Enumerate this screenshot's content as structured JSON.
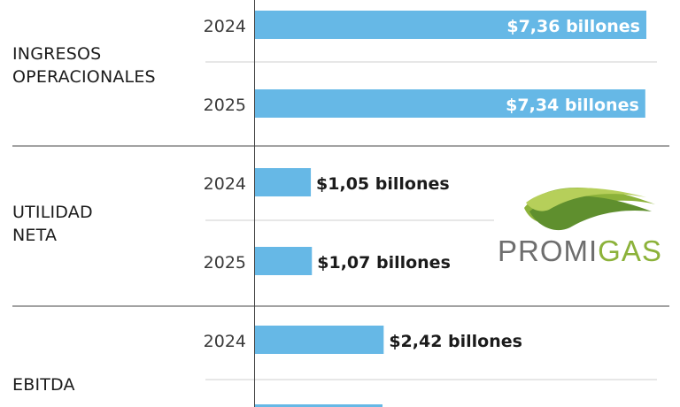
{
  "chart_data": {
    "type": "bar",
    "orientation": "horizontal",
    "unit": "billones COP",
    "xlim": [
      0,
      7.6
    ],
    "groups": [
      {
        "label": "INGRESOS\nOPERACIONALES",
        "items": [
          {
            "year": "2024",
            "value": 7.36,
            "label": "$7,36 billones",
            "label_position": "inside"
          },
          {
            "year": "2025",
            "value": 7.34,
            "label": "$7,34 billones",
            "label_position": "inside"
          }
        ]
      },
      {
        "label": "UTILIDAD\nNETA",
        "items": [
          {
            "year": "2024",
            "value": 1.05,
            "label": "$1,05 billones",
            "label_position": "outside"
          },
          {
            "year": "2025",
            "value": 1.07,
            "label": "$1,07 billones",
            "label_position": "outside"
          }
        ]
      },
      {
        "label": "EBITDA",
        "items": [
          {
            "year": "2024",
            "value": 2.42,
            "label": "$2,42 billones",
            "label_position": "outside"
          }
        ]
      }
    ]
  },
  "logo": {
    "text_part1": "PROMI",
    "text_part2": "GAS"
  },
  "colors": {
    "bar": "#66b8e6",
    "text": "#1b1b1b",
    "year": "#3a3a3a",
    "divider": "#444444",
    "gridline": "#cfcfcf",
    "inside_label": "#ffffff"
  }
}
